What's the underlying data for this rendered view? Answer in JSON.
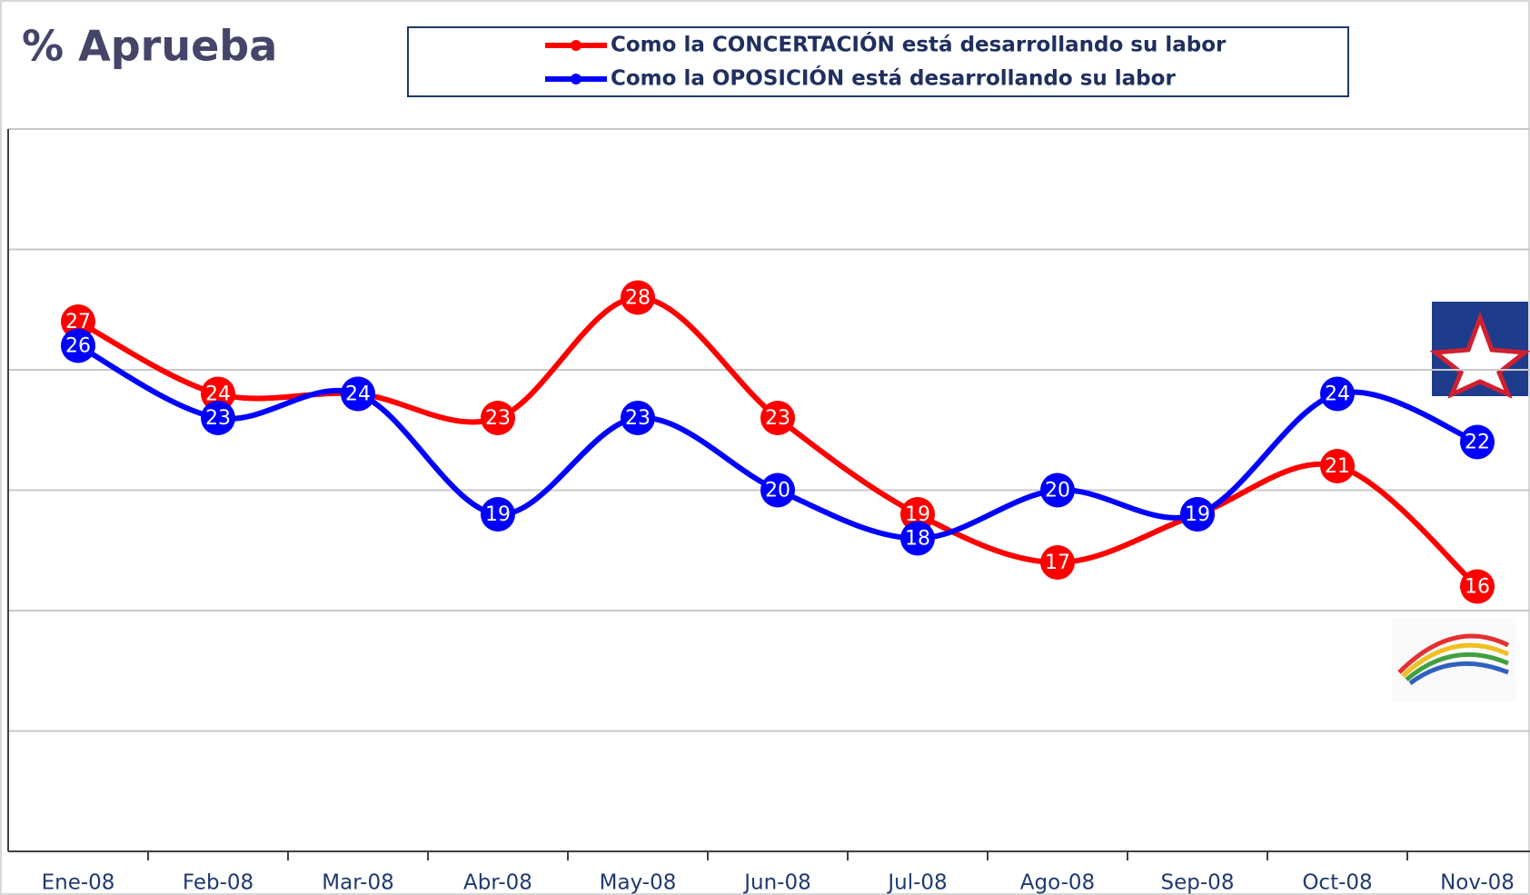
{
  "chart_data": {
    "type": "line",
    "title": "% Aprueba",
    "categories": [
      "Ene-08",
      "Feb-08",
      "Mar-08",
      "Abr-08",
      "May-08",
      "Jun-08",
      "Jul-08",
      "Ago-08",
      "Sep-08",
      "Oct-08",
      "Nov-08"
    ],
    "series": [
      {
        "name": "Como la CONCERTACIÓN está desarrollando su labor",
        "color": "#ff0000",
        "values": [
          27,
          24,
          24,
          23,
          28,
          23,
          19,
          17,
          19,
          21,
          16
        ]
      },
      {
        "name": "Como la OPOSICIÓN está desarrollando su labor",
        "color": "#0000ff",
        "values": [
          26,
          23,
          24,
          19,
          23,
          20,
          18,
          20,
          19,
          24,
          22
        ]
      }
    ],
    "ylim": [
      5,
      35
    ],
    "yticks": [
      5,
      10,
      15,
      20,
      25,
      30,
      35
    ],
    "grid": true
  }
}
